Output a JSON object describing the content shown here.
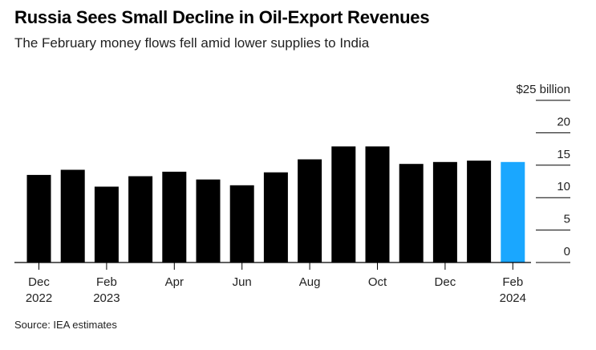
{
  "title": "Russia Sees Small Decline in Oil-Export Revenues",
  "subtitle": "The February money flows fell amid lower supplies to India",
  "source": "Source: IEA estimates",
  "chart_data": {
    "type": "bar",
    "categories": [
      "Dec 2022",
      "Jan 2023",
      "Feb 2023",
      "Mar 2023",
      "Apr 2023",
      "May 2023",
      "Jun 2023",
      "Jul 2023",
      "Aug 2023",
      "Sep 2023",
      "Oct 2023",
      "Nov 2023",
      "Dec 2023",
      "Jan 2024",
      "Feb 2024"
    ],
    "values": [
      13.5,
      14.3,
      11.7,
      13.3,
      14.0,
      12.8,
      11.9,
      13.9,
      15.9,
      17.9,
      17.9,
      15.2,
      15.5,
      15.7,
      15.5
    ],
    "highlight_index": 14,
    "bar_color": "#000000",
    "highlight_color": "#1aa7ff",
    "ylim": [
      0,
      25
    ],
    "yticks": [
      {
        "value": 0,
        "label": "0"
      },
      {
        "value": 5,
        "label": "5"
      },
      {
        "value": 10,
        "label": "10"
      },
      {
        "value": 15,
        "label": "15"
      },
      {
        "value": 20,
        "label": "20"
      },
      {
        "value": 25,
        "label": "$25 billion"
      }
    ],
    "xticks": [
      {
        "index": 0,
        "line1": "Dec",
        "line2": "2022"
      },
      {
        "index": 2,
        "line1": "Feb",
        "line2": "2023"
      },
      {
        "index": 4,
        "line1": "Apr",
        "line2": ""
      },
      {
        "index": 6,
        "line1": "Jun",
        "line2": ""
      },
      {
        "index": 8,
        "line1": "Aug",
        "line2": ""
      },
      {
        "index": 10,
        "line1": "Oct",
        "line2": ""
      },
      {
        "index": 12,
        "line1": "Dec",
        "line2": ""
      },
      {
        "index": 14,
        "line1": "Feb",
        "line2": "2024"
      }
    ],
    "xlabel": "",
    "ylabel": "",
    "grid": false
  }
}
